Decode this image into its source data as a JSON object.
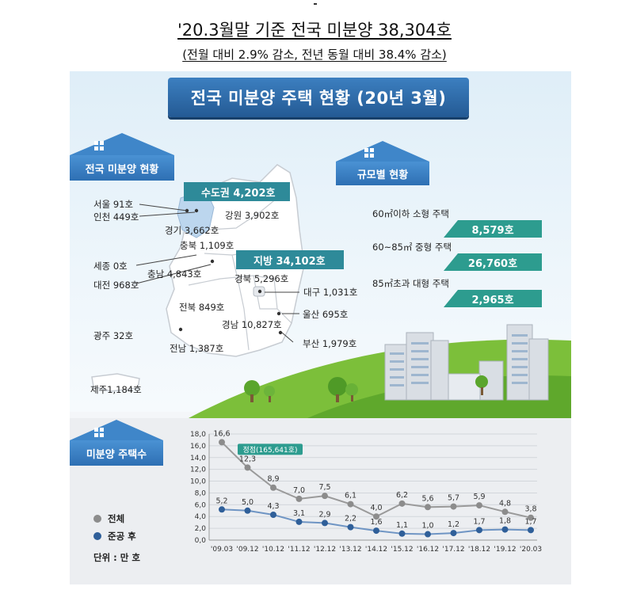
{
  "headline": "'20.3월말 기준 전국 미분양 38,304호",
  "subline": "(전월 대비 2.9% 감소, 전년 동월 대비 38.4% 감소)",
  "banner": "전국 미분양 주택 현황 (20년 3월)",
  "sections": {
    "national": "전국 미분양 현황",
    "by_size": "규모별 현황",
    "trend": "미분양 주택수"
  },
  "map": {
    "metro_badge": "수도권 4,202호",
    "local_badge": "지방 34,102호",
    "labels": {
      "seoul": "서울  91호",
      "incheon": "인천 449호",
      "gyeonggi": "경기 3,662호",
      "gangwon": "강원 3,902호",
      "chungbuk": "충북 1,109호",
      "sejong": "세종 0호",
      "chungnam": "충남 4,843호",
      "daejeon": "대전 968호",
      "gyeongbuk": "경북 5,296호",
      "daegu": "대구 1,031호",
      "jeonbuk": "전북 849호",
      "ulsan": "울산 695호",
      "gyeongnam": "경남 10,827호",
      "gwangju": "광주 32호",
      "busan": "부산 1,979호",
      "jeonnam": "전남 1,387호",
      "jeju": "제주1,184호"
    }
  },
  "size_breakdown": [
    {
      "label": "60㎡이하 소형 주택",
      "value": "8,579호"
    },
    {
      "label": "60~85㎡ 중형 주택",
      "value": "26,760호"
    },
    {
      "label": "85㎡초과 대형 주택",
      "value": "2,965호"
    }
  ],
  "legend": {
    "total": "전체",
    "completed": "준공 후",
    "unit": "단위 : 만 호"
  },
  "colors": {
    "total": "#8c8c8c",
    "completed": "#2f5f99",
    "banner": "#2a66a6",
    "accent": "#2d9c8f"
  },
  "chart_data": {
    "type": "line",
    "categories": [
      "'09.03",
      "'09.12",
      "'10.12",
      "'11.12",
      "'12.12",
      "'13.12",
      "'14.12",
      "'15.12",
      "'16.12",
      "'17.12",
      "'18.12",
      "'19.12",
      "'20.03"
    ],
    "series": [
      {
        "name": "전체",
        "values": [
          16.6,
          12.3,
          8.9,
          7.0,
          7.5,
          6.1,
          4.0,
          6.2,
          5.6,
          5.7,
          5.9,
          4.8,
          3.8
        ],
        "labels": [
          "16,6",
          "12,3",
          "8,9",
          "7,0",
          "7,5",
          "6,1",
          "4,0",
          "6,2",
          "5,6",
          "5,7",
          "5,9",
          "4,8",
          "3,8"
        ]
      },
      {
        "name": "준공 후",
        "values": [
          5.2,
          5.0,
          4.3,
          3.1,
          2.9,
          2.2,
          1.6,
          1.1,
          1.0,
          1.2,
          1.7,
          1.8,
          1.7
        ],
        "labels": [
          "5,2",
          "5,0",
          "4,3",
          "3,1",
          "2,9",
          "2,2",
          "1,6",
          "1,1",
          "1,0",
          "1,2",
          "1,7",
          "1,8",
          "1,7"
        ]
      }
    ],
    "yticks": [
      "0,0",
      "2,0",
      "4,0",
      "6,0",
      "8,0",
      "10,0",
      "12,0",
      "14,0",
      "16,0",
      "18,0"
    ],
    "ylim": [
      0,
      18
    ],
    "annotation": "정점(165,641호)",
    "grid": true
  }
}
